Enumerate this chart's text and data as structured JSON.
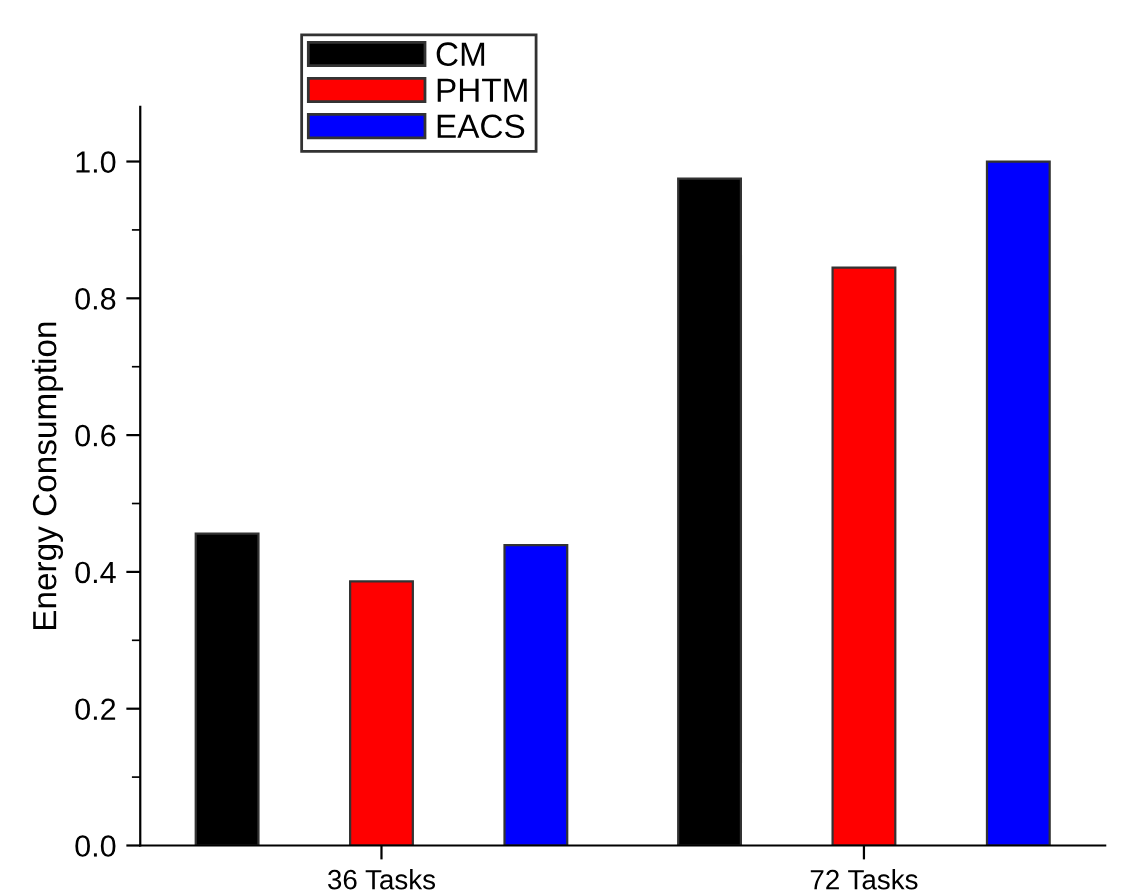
{
  "chart_data": {
    "type": "bar",
    "ylabel": "Energy Consumption",
    "categories": [
      "36 Tasks",
      "72 Tasks"
    ],
    "series": [
      {
        "name": "CM",
        "color": "#000000",
        "values": [
          0.456,
          0.975
        ]
      },
      {
        "name": "PHTM",
        "color": "#ff0000",
        "values": [
          0.386,
          0.845
        ]
      },
      {
        "name": "EACS",
        "color": "#0000ff",
        "values": [
          0.439,
          1.0
        ]
      }
    ],
    "ylim": [
      0,
      1.08
    ],
    "yticks": [
      {
        "value": 0,
        "label": "0.0"
      },
      {
        "value": 0.2,
        "label": "0.2"
      },
      {
        "value": 0.4,
        "label": "0.4"
      },
      {
        "value": 0.6,
        "label": "0.6"
      },
      {
        "value": 0.8,
        "label": "0.8"
      },
      {
        "value": 1.0,
        "label": "1.0"
      }
    ],
    "grid": false,
    "legend": "top left"
  }
}
